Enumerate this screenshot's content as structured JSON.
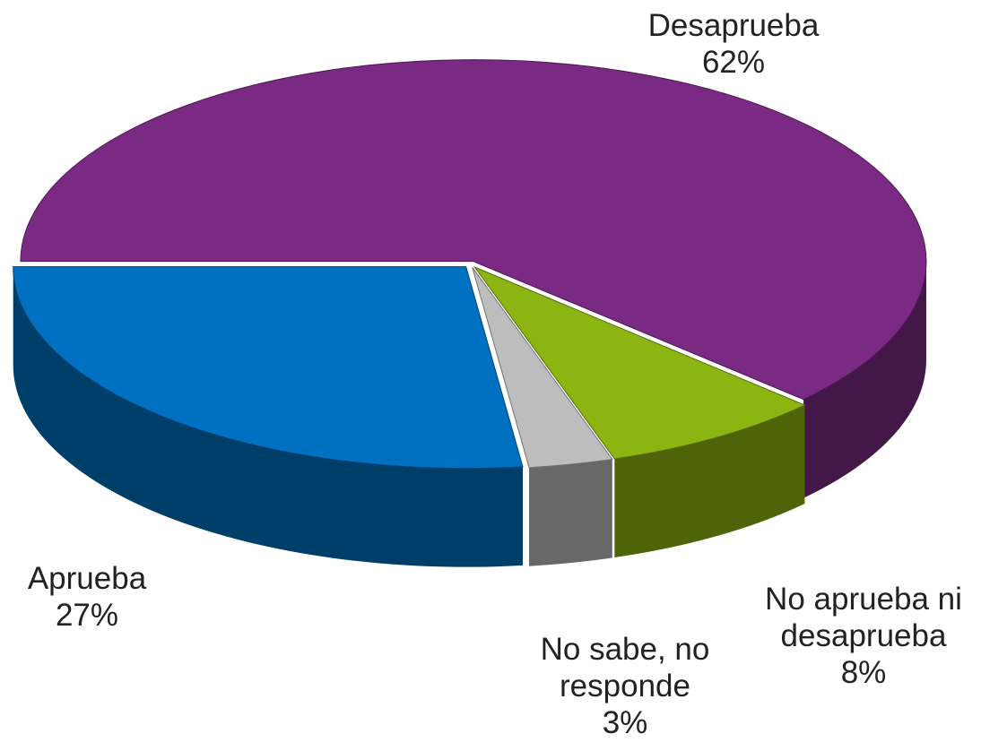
{
  "chart_data": {
    "type": "pie",
    "categories": [
      "Desaprueba",
      "No aprueba ni desaprueba",
      "No sabe, no responde",
      "Aprueba"
    ],
    "values": [
      62,
      8,
      3,
      27
    ],
    "value_labels": [
      "62%",
      "8%",
      "3%",
      "27%"
    ],
    "colors": [
      "#7b2a84",
      "#8db511",
      "#bdbdbd",
      "#0070c0"
    ]
  }
}
